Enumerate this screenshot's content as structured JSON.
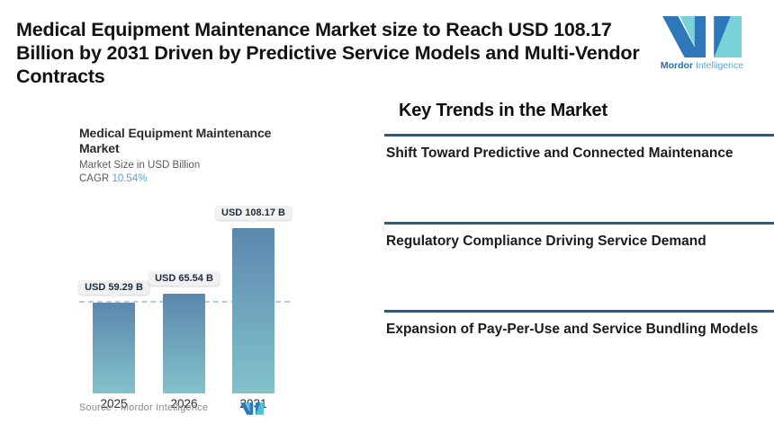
{
  "page": {
    "headline": "Medical Equipment Maintenance Market size to Reach USD 108.17 Billion by 2031 Driven by Predictive Service Models and Multi-Vendor Contracts"
  },
  "brand": {
    "name_bold": "Mordor",
    "name_light": "Intelligence",
    "blue": "#2e77b8",
    "teal": "#79d2d8"
  },
  "chart": {
    "title": "Medical Equipment Maintenance Market",
    "subtitle": "Market Size in USD Billion",
    "cagr_label": "CAGR",
    "cagr_value": "10.54%",
    "source_label": "Source :  Mordor Intelligence"
  },
  "chart_data": {
    "type": "bar",
    "title": "Medical Equipment Maintenance Market",
    "subtitle": "Market Size in USD Billion",
    "cagr": "10.54%",
    "categories": [
      "2025",
      "2026",
      "2031"
    ],
    "values": [
      59.29,
      65.54,
      108.17
    ],
    "value_labels": [
      "USD 59.29 B",
      "USD 65.54 B",
      "USD 108.17 B"
    ],
    "xlabel": "",
    "ylabel": "Market Size in USD Billion",
    "ylim": [
      0,
      120
    ],
    "grid": false,
    "legend": false,
    "bar_gradient_top": "#5a87ae",
    "bar_gradient_bottom": "#83c2cb",
    "dashline_at_value": 59.29,
    "dashline_color": "#b3c9e6",
    "source": "Mordor Intelligence"
  },
  "trends": {
    "heading": "Key Trends in the Market",
    "divider_color": "#215f85",
    "items": [
      {
        "title": "Shift Toward Predictive and Connected Maintenance"
      },
      {
        "title": "Regulatory Compliance Driving Service Demand"
      },
      {
        "title": "Expansion of Pay-Per-Use and Service Bundling Models"
      }
    ]
  }
}
